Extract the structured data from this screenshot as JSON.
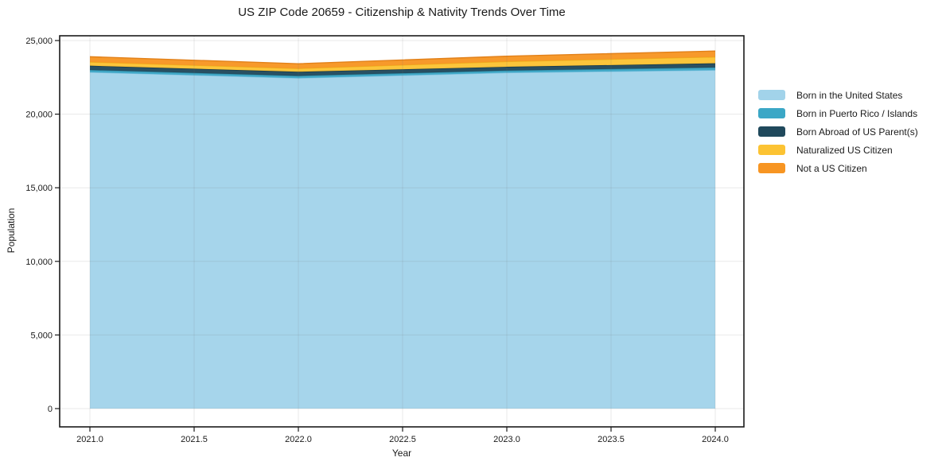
{
  "chart_data": {
    "type": "area",
    "stacked": true,
    "title": "US ZIP Code 20659 - Citizenship & Nativity Trends Over Time",
    "xlabel": "Year",
    "ylabel": "Population",
    "x": [
      2021,
      2022,
      2023,
      2024
    ],
    "x_tick_labels": [
      "2021.0",
      "2021.5",
      "2022.0",
      "2022.5",
      "2023.0",
      "2023.5",
      "2024.0"
    ],
    "y_tick_labels": [
      "0",
      "5,000",
      "10,000",
      "15,000",
      "20,000",
      "25,000"
    ],
    "ylim": [
      0,
      25000
    ],
    "grid": true,
    "legend_position": "right",
    "series": [
      {
        "name": "Born in the United States",
        "color": "#a2d3ea",
        "edge": "#7fc2e0",
        "values": [
          22850,
          22450,
          22820,
          22990
        ]
      },
      {
        "name": "Born in Puerto Rico / Islands",
        "color": "#3ba7c6",
        "edge": "#2d8ba6",
        "values": [
          150,
          150,
          140,
          180
        ]
      },
      {
        "name": "Born Abroad of US Parent(s)",
        "color": "#20495c",
        "edge": "#173847",
        "values": [
          290,
          280,
          255,
          285
        ]
      },
      {
        "name": "Naturalized US Citizen",
        "color": "#fcc333",
        "edge": "#edb01d",
        "values": [
          250,
          220,
          360,
          430
        ]
      },
      {
        "name": "Not a US Citizen",
        "color": "#f79522",
        "edge": "#e2811a",
        "values": [
          360,
          325,
          360,
          400
        ]
      }
    ],
    "totals": [
      23900,
      23425,
      23935,
      24285
    ],
    "style": {
      "axis_color": "#1a1a1a",
      "grid_color": "#e9e9e9",
      "background": "#ffffff"
    }
  }
}
